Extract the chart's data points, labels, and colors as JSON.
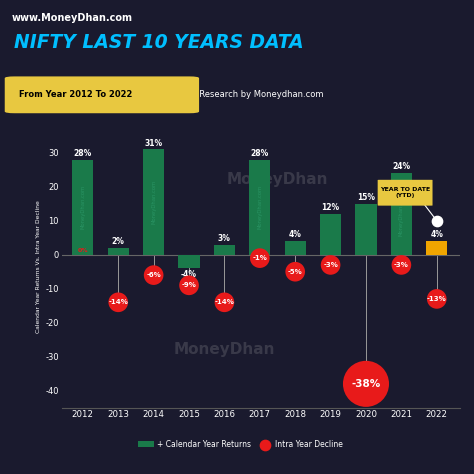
{
  "years": [
    2012,
    2013,
    2014,
    2015,
    2016,
    2017,
    2018,
    2019,
    2020,
    2021,
    2022
  ],
  "calendar_returns": [
    28,
    2,
    31,
    -4,
    3,
    28,
    4,
    12,
    15,
    24,
    4
  ],
  "intra_decline": [
    0,
    -14,
    -6,
    -9,
    -14,
    -1,
    -5,
    -3,
    -38,
    -3,
    -13
  ],
  "bar_color_main": "#1a7a4a",
  "bar_color_ytd": "#f0a500",
  "intra_color": "#e81a1a",
  "bg_color": "#1a1a2e",
  "text_color": "#ffffff",
  "watermark_color": "#aaaaaa",
  "title": "NIFTY LAST 10 YEARS DATA",
  "subtitle_yellow": "From Year 2012 To 2022",
  "subtitle_white": "  Research by Moneydhan.com",
  "ylabel": "Calendar Year Returns Vs. Intra Year Decline",
  "ylim": [
    -45,
    38
  ],
  "yticks": [
    -40,
    -30,
    -20,
    -10,
    0,
    10,
    20,
    30
  ],
  "header_url": "www.MoneyDhan.com",
  "header_bg": "#1565c0",
  "legend_bar_label": "+ Calendar Year Returns",
  "legend_dot_label": "Intra Year Decline",
  "ytd_label": "YEAR TO DATE\n(YTD)",
  "ytd_box_color": "#e8c840"
}
